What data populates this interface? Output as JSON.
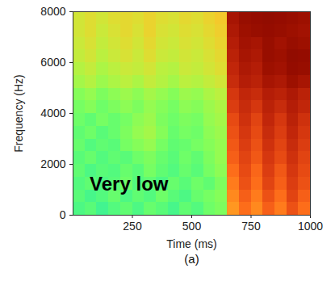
{
  "chart_data": {
    "type": "heatmap",
    "xlabel": "Time (ms)",
    "ylabel": "Frequency (Hz)",
    "caption": "(a)",
    "xlim": [
      0,
      1000
    ],
    "xticks": [
      250,
      500,
      750,
      1000
    ],
    "ylim": [
      0,
      8000
    ],
    "yticks": [
      0,
      2000,
      4000,
      6000,
      8000
    ],
    "color": "turbo",
    "zlim": [
      0,
      1
    ],
    "x_edges": [
      0,
      50,
      100,
      150,
      200,
      250,
      300,
      350,
      400,
      450,
      500,
      550,
      600,
      650,
      700,
      750,
      800,
      850,
      900,
      950,
      1000
    ],
    "y_edges": [
      0,
      500,
      1000,
      1500,
      2000,
      2500,
      3000,
      3500,
      4000,
      4500,
      5000,
      5500,
      6000,
      6500,
      7000,
      7500,
      8000
    ],
    "cells": [
      [
        0.4,
        0.42,
        0.38,
        0.41,
        0.43,
        0.4,
        0.44,
        0.42,
        0.39,
        0.43,
        0.41,
        0.45,
        0.47,
        0.72,
        0.78,
        0.74,
        0.8,
        0.76,
        0.82,
        0.78
      ],
      [
        0.42,
        0.39,
        0.41,
        0.44,
        0.4,
        0.43,
        0.41,
        0.45,
        0.42,
        0.4,
        0.44,
        0.46,
        0.48,
        0.74,
        0.8,
        0.76,
        0.82,
        0.78,
        0.84,
        0.8
      ],
      [
        0.41,
        0.43,
        0.4,
        0.42,
        0.45,
        0.41,
        0.43,
        0.4,
        0.44,
        0.42,
        0.45,
        0.43,
        0.47,
        0.76,
        0.82,
        0.78,
        0.84,
        0.8,
        0.85,
        0.82
      ],
      [
        0.43,
        0.4,
        0.42,
        0.41,
        0.44,
        0.42,
        0.46,
        0.43,
        0.41,
        0.44,
        0.42,
        0.46,
        0.49,
        0.78,
        0.83,
        0.79,
        0.85,
        0.81,
        0.86,
        0.83
      ],
      [
        0.42,
        0.44,
        0.41,
        0.43,
        0.42,
        0.45,
        0.47,
        0.44,
        0.42,
        0.45,
        0.43,
        0.47,
        0.5,
        0.8,
        0.84,
        0.81,
        0.86,
        0.83,
        0.87,
        0.84
      ],
      [
        0.44,
        0.41,
        0.43,
        0.42,
        0.46,
        0.48,
        0.5,
        0.46,
        0.43,
        0.44,
        0.46,
        0.48,
        0.5,
        0.81,
        0.85,
        0.82,
        0.87,
        0.84,
        0.88,
        0.85
      ],
      [
        0.43,
        0.45,
        0.42,
        0.44,
        0.47,
        0.5,
        0.52,
        0.48,
        0.44,
        0.46,
        0.45,
        0.49,
        0.51,
        0.82,
        0.86,
        0.83,
        0.88,
        0.85,
        0.89,
        0.86
      ],
      [
        0.45,
        0.43,
        0.46,
        0.44,
        0.46,
        0.49,
        0.51,
        0.47,
        0.45,
        0.47,
        0.46,
        0.5,
        0.52,
        0.83,
        0.87,
        0.84,
        0.89,
        0.86,
        0.9,
        0.87
      ],
      [
        0.46,
        0.48,
        0.45,
        0.47,
        0.49,
        0.47,
        0.5,
        0.48,
        0.46,
        0.49,
        0.48,
        0.51,
        0.53,
        0.85,
        0.88,
        0.86,
        0.9,
        0.88,
        0.91,
        0.89
      ],
      [
        0.48,
        0.5,
        0.47,
        0.49,
        0.51,
        0.49,
        0.52,
        0.5,
        0.48,
        0.51,
        0.5,
        0.53,
        0.55,
        0.86,
        0.89,
        0.88,
        0.91,
        0.9,
        0.92,
        0.9
      ],
      [
        0.52,
        0.54,
        0.51,
        0.53,
        0.55,
        0.53,
        0.56,
        0.54,
        0.52,
        0.55,
        0.54,
        0.56,
        0.58,
        0.88,
        0.91,
        0.9,
        0.93,
        0.92,
        0.95,
        0.93
      ],
      [
        0.54,
        0.56,
        0.53,
        0.55,
        0.57,
        0.56,
        0.58,
        0.55,
        0.54,
        0.57,
        0.56,
        0.58,
        0.6,
        0.89,
        0.92,
        0.91,
        0.95,
        0.94,
        0.97,
        0.96
      ],
      [
        0.56,
        0.58,
        0.55,
        0.57,
        0.59,
        0.57,
        0.6,
        0.57,
        0.56,
        0.58,
        0.57,
        0.59,
        0.61,
        0.9,
        0.93,
        0.92,
        0.96,
        0.95,
        0.98,
        0.97
      ],
      [
        0.57,
        0.59,
        0.56,
        0.58,
        0.6,
        0.58,
        0.61,
        0.58,
        0.57,
        0.59,
        0.58,
        0.6,
        0.62,
        0.91,
        0.94,
        0.93,
        0.96,
        0.94,
        0.96,
        0.95
      ],
      [
        0.58,
        0.6,
        0.57,
        0.59,
        0.61,
        0.59,
        0.62,
        0.59,
        0.58,
        0.6,
        0.59,
        0.61,
        0.63,
        0.92,
        0.95,
        0.96,
        0.97,
        0.96,
        0.95,
        0.94
      ],
      [
        0.58,
        0.6,
        0.58,
        0.6,
        0.61,
        0.6,
        0.62,
        0.6,
        0.59,
        0.61,
        0.6,
        0.62,
        0.64,
        0.93,
        0.96,
        0.97,
        0.98,
        0.97,
        0.96,
        0.95
      ]
    ],
    "annotations": [
      {
        "text": "Very low",
        "x": 70,
        "y": 1200
      }
    ]
  }
}
